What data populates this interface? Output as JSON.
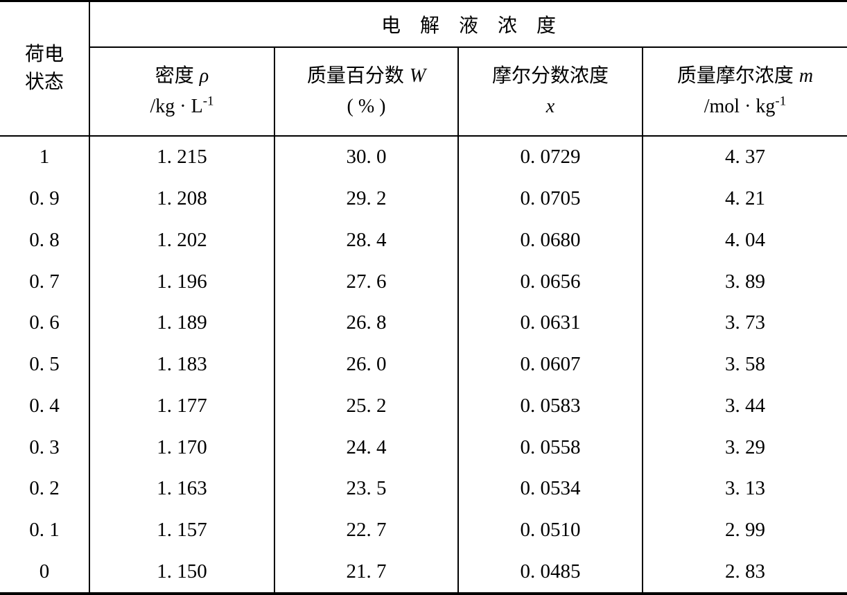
{
  "table": {
    "soc_header": {
      "line1": "荷电",
      "line2": "状态"
    },
    "group_header": "电解液浓度",
    "columns": [
      {
        "name": "密度",
        "symbol": "ρ",
        "unit": "/kg · L",
        "unit_sup": "-1"
      },
      {
        "name": "质量百分数",
        "symbol": "W",
        "unit": "( % )"
      },
      {
        "name": "摩尔分数浓度",
        "symbol": "",
        "unit": "x"
      },
      {
        "name": "质量摩尔浓度",
        "symbol": "m",
        "unit": "/mol · kg",
        "unit_sup": "-1"
      }
    ],
    "rows": [
      {
        "soc": "1",
        "density": "1. 215",
        "mass_percent": "30. 0",
        "mole_fraction": "0. 0729",
        "molality": "4. 37"
      },
      {
        "soc": "0. 9",
        "density": "1. 208",
        "mass_percent": "29. 2",
        "mole_fraction": "0. 0705",
        "molality": "4. 21"
      },
      {
        "soc": "0. 8",
        "density": "1. 202",
        "mass_percent": "28. 4",
        "mole_fraction": "0. 0680",
        "molality": "4. 04"
      },
      {
        "soc": "0. 7",
        "density": "1. 196",
        "mass_percent": "27. 6",
        "mole_fraction": "0. 0656",
        "molality": "3. 89"
      },
      {
        "soc": "0. 6",
        "density": "1. 189",
        "mass_percent": "26. 8",
        "mole_fraction": "0. 0631",
        "molality": "3. 73"
      },
      {
        "soc": "0. 5",
        "density": "1. 183",
        "mass_percent": "26. 0",
        "mole_fraction": "0. 0607",
        "molality": "3. 58"
      },
      {
        "soc": "0. 4",
        "density": "1. 177",
        "mass_percent": "25. 2",
        "mole_fraction": "0. 0583",
        "molality": "3. 44"
      },
      {
        "soc": "0. 3",
        "density": "1. 170",
        "mass_percent": "24. 4",
        "mole_fraction": "0. 0558",
        "molality": "3. 29"
      },
      {
        "soc": "0. 2",
        "density": "1. 163",
        "mass_percent": "23. 5",
        "mole_fraction": "0. 0534",
        "molality": "3. 13"
      },
      {
        "soc": "0. 1",
        "density": "1. 157",
        "mass_percent": "22. 7",
        "mole_fraction": "0. 0510",
        "molality": "2. 99"
      },
      {
        "soc": "0",
        "density": "1. 150",
        "mass_percent": "21. 7",
        "mole_fraction": "0. 0485",
        "molality": "2. 83"
      }
    ]
  }
}
